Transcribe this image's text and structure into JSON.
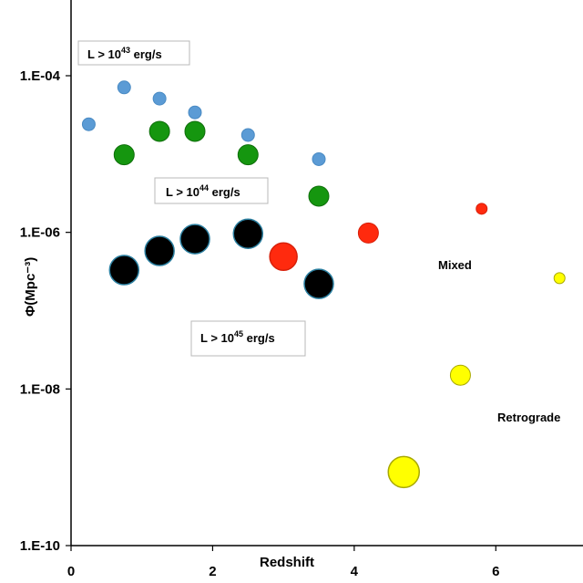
{
  "chart_data": {
    "type": "scatter",
    "title": "",
    "xlabel": "Redshift",
    "ylabel": "Φ(Mpc⁻³)",
    "xlim": [
      0,
      7
    ],
    "ylim_log10": [
      -10,
      -4
    ],
    "y_scale": "log",
    "grid": false,
    "x_ticks": [
      {
        "v": 0,
        "label": "0"
      },
      {
        "v": 2,
        "label": "2"
      },
      {
        "v": 4,
        "label": "4"
      },
      {
        "v": 6,
        "label": "6"
      }
    ],
    "y_ticks": [
      {
        "v": -4,
        "label": "1.E-04"
      },
      {
        "v": -6,
        "label": "1.E-06"
      },
      {
        "v": -8,
        "label": "1.E-08"
      },
      {
        "v": -10,
        "label": "1.E-10"
      }
    ],
    "colors": {
      "blue": "#5b9bd5",
      "green": "#15960f",
      "black": "#000000",
      "red": "#ff2a0e",
      "yellow": "#ffff00"
    },
    "series": [
      {
        "color": "#5b9bd5",
        "stroke": "#4a8bc4",
        "size": 7,
        "points": [
          {
            "x": 0.25,
            "y": 2.4e-05
          },
          {
            "x": 0.75,
            "y": 7.1e-05
          },
          {
            "x": 1.25,
            "y": 5.1e-05
          },
          {
            "x": 1.75,
            "y": 3.4e-05
          },
          {
            "x": 2.5,
            "y": 1.75e-05
          },
          {
            "x": 3.5,
            "y": 8.6e-06
          }
        ]
      },
      {
        "color": "#15960f",
        "stroke": "#0e6e0a",
        "size": 11,
        "points": [
          {
            "x": 0.75,
            "y": 9.8e-06
          },
          {
            "x": 1.25,
            "y": 1.95e-05
          },
          {
            "x": 1.75,
            "y": 1.95e-05
          },
          {
            "x": 2.5,
            "y": 9.8e-06
          },
          {
            "x": 3.5,
            "y": 2.9e-06
          }
        ]
      },
      {
        "color": "#000000",
        "stroke": "#2b7fa0",
        "size": 16,
        "points": [
          {
            "x": 0.75,
            "y": 3.3e-07
          },
          {
            "x": 1.25,
            "y": 5.8e-07
          },
          {
            "x": 1.75,
            "y": 8.2e-07
          },
          {
            "x": 2.5,
            "y": 9.6e-07
          },
          {
            "x": 3.5,
            "y": 2.2e-07
          }
        ]
      },
      {
        "color": "#ff2a0e",
        "stroke": "#d8200a",
        "size": 15,
        "points": [
          {
            "x": 3.0,
            "y": 4.9e-07
          }
        ]
      },
      {
        "color": "#ff2a0e",
        "stroke": "#d8200a",
        "size": 11,
        "points": [
          {
            "x": 4.2,
            "y": 9.8e-07
          }
        ]
      },
      {
        "color": "#ff2a0e",
        "stroke": "#d8200a",
        "size": 6,
        "points": [
          {
            "x": 5.8,
            "y": 2e-06
          }
        ]
      },
      {
        "color": "#ffff00",
        "stroke": "#a8a800",
        "size": 6,
        "points": [
          {
            "x": 6.9,
            "y": 2.6e-07
          }
        ]
      },
      {
        "color": "#ffff00",
        "stroke": "#a8a800",
        "size": 11,
        "points": [
          {
            "x": 5.5,
            "y": 1.5e-08
          }
        ]
      },
      {
        "color": "#ffff00",
        "stroke": "#a8a800",
        "size": 17,
        "points": [
          {
            "x": 4.7,
            "y": 8.7e-10
          }
        ]
      }
    ],
    "annotations": {
      "lum43": {
        "prefix": "L > 10",
        "exp": "43",
        "suffix": " erg/s"
      },
      "lum44": {
        "prefix": "L > 10",
        "exp": "44",
        "suffix": " erg/s"
      },
      "lum45": {
        "prefix": "L > 10",
        "exp": "45",
        "suffix": " erg/s"
      },
      "mixed": "Mixed",
      "retrograde": "Retrograde"
    }
  }
}
